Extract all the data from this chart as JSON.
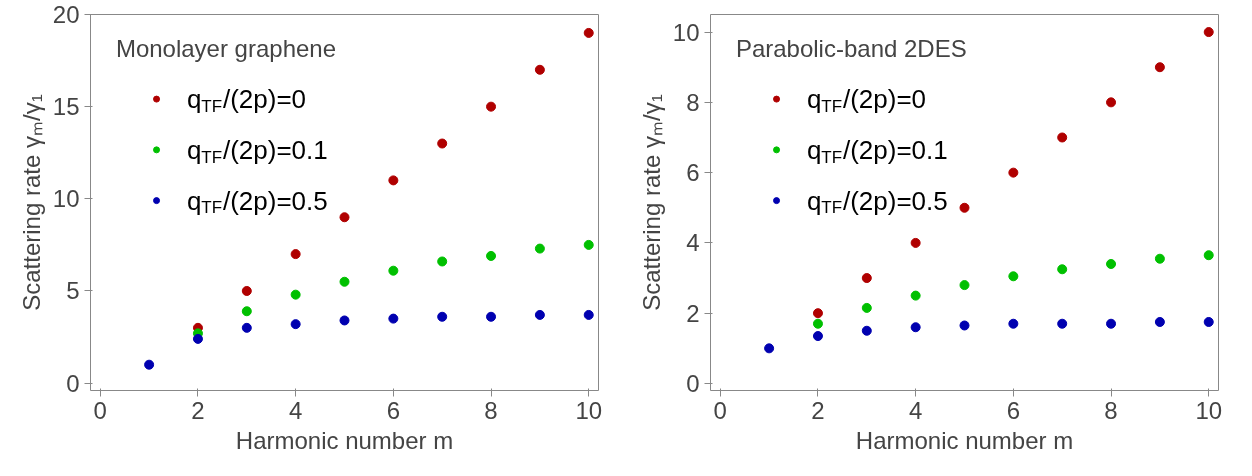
{
  "chart_data": [
    {
      "type": "scatter",
      "legend_title": "Monolayer graphene",
      "xlabel": "Harmonic number m",
      "ylabel": "Scattering rate γₘ/γ₁",
      "x": [
        1,
        2,
        3,
        4,
        5,
        6,
        7,
        8,
        9,
        10
      ],
      "xlim": [
        -0.2,
        10.2
      ],
      "ylim": [
        -0.4,
        20
      ],
      "xticks": [
        0,
        2,
        4,
        6,
        8,
        10
      ],
      "yticks": [
        0,
        5,
        10,
        15,
        20
      ],
      "legend": "top left",
      "marker": "circle",
      "grid": false,
      "series": [
        {
          "name": "q$_{TF}$/(2p)=0",
          "color": "#b00000",
          "values": [
            null,
            3,
            5,
            7,
            9,
            11,
            13,
            15,
            17,
            19
          ]
        },
        {
          "name": "q$_{TF}$/(2p)=0.1",
          "color": "#00c000",
          "values": [
            null,
            2.7,
            3.9,
            4.8,
            5.5,
            6.1,
            6.6,
            6.9,
            7.3,
            7.5
          ]
        },
        {
          "name": "q$_{TF}$/(2p)=0.5",
          "color": "#0000b0",
          "values": [
            1,
            2.4,
            3.0,
            3.2,
            3.4,
            3.5,
            3.6,
            3.6,
            3.7,
            3.7
          ]
        }
      ]
    },
    {
      "type": "scatter",
      "legend_title": "Parabolic-band 2DES",
      "xlabel": "Harmonic number m",
      "ylabel": "Scattering rate γₘ/γ₁",
      "x": [
        1,
        2,
        3,
        4,
        5,
        6,
        7,
        8,
        9,
        10
      ],
      "xlim": [
        -0.2,
        10.2
      ],
      "ylim": [
        -0.2,
        10.5
      ],
      "xticks": [
        0,
        2,
        4,
        6,
        8,
        10
      ],
      "yticks": [
        0,
        2,
        4,
        6,
        8,
        10
      ],
      "legend": "top left",
      "marker": "circle",
      "grid": false,
      "series": [
        {
          "name": "q$_{TF}$/(2p)=0",
          "color": "#b00000",
          "values": [
            null,
            2,
            3,
            4,
            5,
            6,
            7,
            8,
            9,
            10
          ]
        },
        {
          "name": "q$_{TF}$/(2p)=0.1",
          "color": "#00c000",
          "values": [
            null,
            1.7,
            2.15,
            2.5,
            2.8,
            3.05,
            3.25,
            3.4,
            3.55,
            3.65
          ]
        },
        {
          "name": "q$_{TF}$/(2p)=0.5",
          "color": "#0000b0",
          "values": [
            1,
            1.35,
            1.5,
            1.6,
            1.65,
            1.7,
            1.7,
            1.7,
            1.75,
            1.75
          ]
        }
      ]
    }
  ]
}
